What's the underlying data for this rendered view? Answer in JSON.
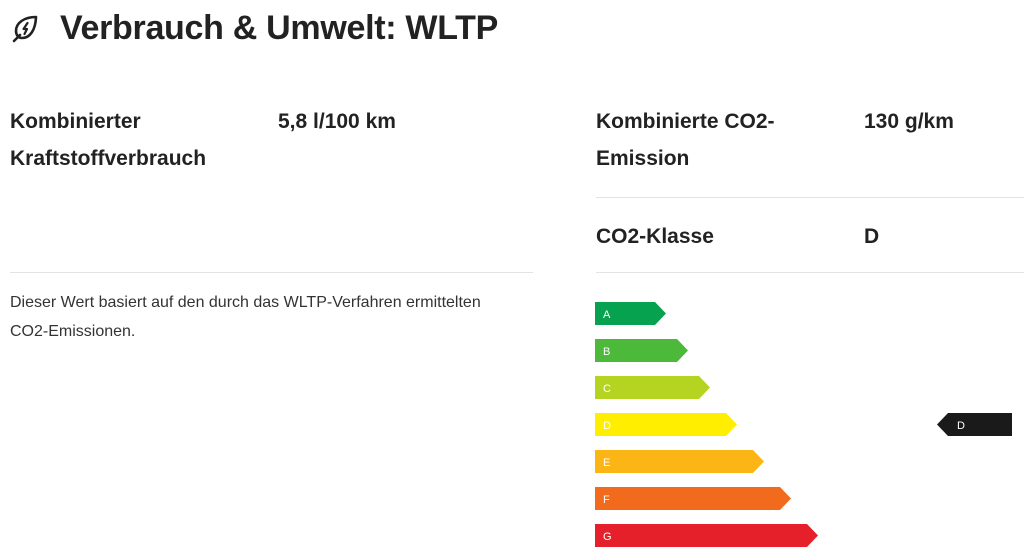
{
  "header": {
    "title": "Verbrauch & Umwelt: WLTP",
    "icon": "leaf-bolt-icon"
  },
  "consumption": {
    "label_line1": "Kombinierter",
    "label_line2": "Kraftstoffverbrauch",
    "value": "5,8 l/100 km",
    "note_line1": "Dieser Wert basiert auf den durch das WLTP-Verfahren ermittelten",
    "note_line2": "CO2-Emissionen."
  },
  "emission": {
    "label_line1": "Kombinierte CO2-",
    "label_line2": "Emission",
    "value": "130 g/km"
  },
  "co2_class": {
    "label": "CO2-Klasse",
    "value": "D"
  },
  "efficiency_scale": {
    "classes": [
      {
        "letter": "A",
        "color": "#06a24f"
      },
      {
        "letter": "B",
        "color": "#4cb93a"
      },
      {
        "letter": "C",
        "color": "#b5d421"
      },
      {
        "letter": "D",
        "color": "#ffee00"
      },
      {
        "letter": "E",
        "color": "#fbb615"
      },
      {
        "letter": "F",
        "color": "#f26a1b"
      },
      {
        "letter": "G",
        "color": "#e6202a"
      }
    ],
    "selected": "D",
    "marker_color": "#1a1a1a"
  }
}
